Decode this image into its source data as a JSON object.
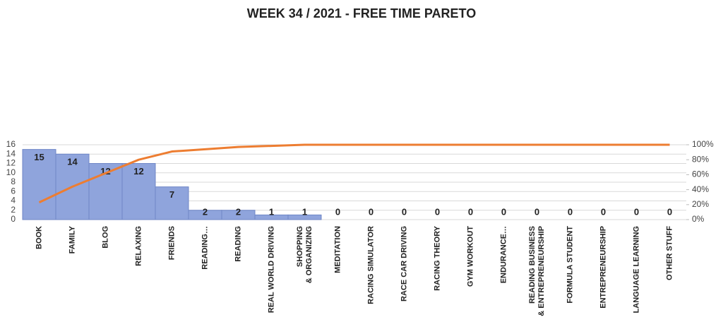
{
  "chart_data": {
    "type": "pareto",
    "title": "WEEK 34 / 2021 - FREE TIME PARETO",
    "categories": [
      "BOOK",
      "FAMILY",
      "BLOG",
      "RELAXING",
      "FRIENDS",
      "READING…",
      "READING",
      "REAL WORLD DRIVING",
      "SHOPPING & ORGANIZING",
      "MEDITATION",
      "RACING SIMULATOR",
      "RACE CAR DRIVING",
      "RACING THEORY",
      "GYM WORKOUT",
      "ENDURANCE…",
      "READING BUSINESS & ENTREPRENEURSHIP",
      "FORMULA STUDENT",
      "ENTREPRENEURSHIP",
      "LANGUAGE LEARNING",
      "OTHER STUFF"
    ],
    "series": [
      {
        "type": "bar",
        "color": "#8fa4dc",
        "values": [
          15,
          14,
          12,
          12,
          7,
          2,
          2,
          1,
          1,
          0,
          0,
          0,
          0,
          0,
          0,
          0,
          0,
          0,
          0,
          0
        ]
      },
      {
        "type": "line",
        "axis": "y2",
        "color": "#ed7d31",
        "values": [
          23,
          44,
          62,
          80,
          91,
          94,
          97,
          98.5,
          100,
          100,
          100,
          100,
          100,
          100,
          100,
          100,
          100,
          100,
          100,
          100
        ]
      }
    ],
    "ylim": [
      0,
      16
    ],
    "yticks": [
      0,
      2,
      4,
      6,
      8,
      10,
      12,
      14,
      16
    ],
    "y2lim": [
      0,
      100
    ],
    "y2ticks": [
      {
        "value": 0,
        "label": "0%"
      },
      {
        "value": 20,
        "label": "20%"
      },
      {
        "value": 40,
        "label": "40%"
      },
      {
        "value": 60,
        "label": "60%"
      },
      {
        "value": 80,
        "label": "80%"
      },
      {
        "value": 100,
        "label": "100%"
      }
    ],
    "grid": true
  }
}
